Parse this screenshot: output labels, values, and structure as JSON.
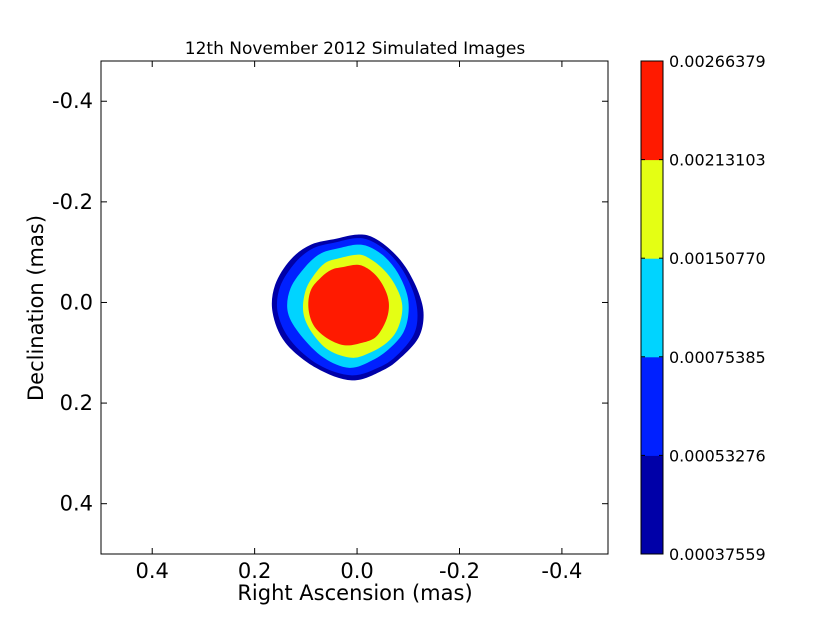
{
  "chart_data": {
    "type": "contour",
    "title": "12th November 2012 Simulated Images",
    "xlabel": "Right Ascension (mas)",
    "ylabel": "Declination (mas)",
    "xlim": [
      0.5,
      -0.49
    ],
    "ylim": [
      0.5,
      -0.48
    ],
    "x_ticks": [
      {
        "value": 0.4,
        "label": "0.4"
      },
      {
        "value": 0.2,
        "label": "0.2"
      },
      {
        "value": 0.0,
        "label": "0.0"
      },
      {
        "value": -0.2,
        "label": "-0.2"
      },
      {
        "value": -0.4,
        "label": "-0.4"
      }
    ],
    "y_ticks": [
      {
        "value": -0.4,
        "label": "-0.4"
      },
      {
        "value": -0.2,
        "label": "-0.2"
      },
      {
        "value": 0.0,
        "label": "0.0"
      },
      {
        "value": 0.2,
        "label": "0.2"
      },
      {
        "value": 0.4,
        "label": "0.4"
      }
    ],
    "grid": false,
    "colorbar": {
      "position": "right",
      "levels": [
        {
          "value": 0.00037559,
          "label": "0.00037559"
        },
        {
          "value": 0.00053276,
          "label": "0.00053276"
        },
        {
          "value": 0.00075385,
          "label": "0.00075385"
        },
        {
          "value": 0.0015077,
          "label": "0.00150770"
        },
        {
          "value": 0.00213103,
          "label": "0.00213103"
        },
        {
          "value": 0.00266379,
          "label": "0.00266379"
        }
      ],
      "colors": [
        "#0000a8",
        "#0020ff",
        "#00d4ff",
        "#e4ff14",
        "#ff1a00"
      ]
    },
    "contours": [
      {
        "level": 0.00037559,
        "color": "#0000a8",
        "points": [
          [
            0.04,
            -0.127
          ],
          [
            0.0,
            -0.135
          ],
          [
            -0.03,
            -0.13
          ],
          [
            -0.065,
            -0.105
          ],
          [
            -0.095,
            -0.07
          ],
          [
            -0.12,
            -0.02
          ],
          [
            -0.13,
            0.025
          ],
          [
            -0.12,
            0.07
          ],
          [
            -0.085,
            0.11
          ],
          [
            -0.05,
            0.135
          ],
          [
            0.01,
            0.155
          ],
          [
            0.08,
            0.13
          ],
          [
            0.14,
            0.08
          ],
          [
            0.165,
            0.02
          ],
          [
            0.16,
            -0.035
          ],
          [
            0.13,
            -0.085
          ],
          [
            0.09,
            -0.115
          ]
        ]
      },
      {
        "level": 0.00053276,
        "color": "#0020ff",
        "points": [
          [
            0.04,
            -0.12
          ],
          [
            0.0,
            -0.128
          ],
          [
            -0.028,
            -0.122
          ],
          [
            -0.06,
            -0.1
          ],
          [
            -0.088,
            -0.066
          ],
          [
            -0.11,
            -0.02
          ],
          [
            -0.118,
            0.025
          ],
          [
            -0.11,
            0.065
          ],
          [
            -0.078,
            0.105
          ],
          [
            -0.045,
            0.128
          ],
          [
            0.01,
            0.145
          ],
          [
            0.075,
            0.124
          ],
          [
            0.13,
            0.075
          ],
          [
            0.155,
            0.02
          ],
          [
            0.15,
            -0.032
          ],
          [
            0.12,
            -0.08
          ],
          [
            0.085,
            -0.108
          ]
        ]
      },
      {
        "level": 0.00075385,
        "color": "#00d4ff",
        "points": [
          [
            0.035,
            -0.108
          ],
          [
            0.0,
            -0.115
          ],
          [
            -0.025,
            -0.11
          ],
          [
            -0.055,
            -0.09
          ],
          [
            -0.08,
            -0.058
          ],
          [
            -0.098,
            -0.015
          ],
          [
            -0.1,
            0.025
          ],
          [
            -0.09,
            0.06
          ],
          [
            -0.065,
            0.09
          ],
          [
            -0.03,
            0.115
          ],
          [
            0.015,
            0.13
          ],
          [
            0.065,
            0.11
          ],
          [
            0.11,
            0.065
          ],
          [
            0.135,
            0.02
          ],
          [
            0.13,
            -0.028
          ],
          [
            0.1,
            -0.072
          ],
          [
            0.07,
            -0.098
          ]
        ]
      },
      {
        "level": 0.0015077,
        "color": "#e4ff14",
        "points": [
          [
            0.035,
            -0.088
          ],
          [
            0.0,
            -0.095
          ],
          [
            -0.02,
            -0.09
          ],
          [
            -0.045,
            -0.072
          ],
          [
            -0.068,
            -0.045
          ],
          [
            -0.085,
            -0.01
          ],
          [
            -0.088,
            0.02
          ],
          [
            -0.078,
            0.055
          ],
          [
            -0.058,
            0.08
          ],
          [
            -0.025,
            0.1
          ],
          [
            0.01,
            0.11
          ],
          [
            0.055,
            0.095
          ],
          [
            0.088,
            0.06
          ],
          [
            0.105,
            0.02
          ],
          [
            0.1,
            -0.025
          ],
          [
            0.08,
            -0.06
          ],
          [
            0.06,
            -0.08
          ]
        ]
      },
      {
        "level": 0.00213103,
        "color": "#ff1a00",
        "points": [
          [
            0.03,
            -0.07
          ],
          [
            0.0,
            -0.075
          ],
          [
            -0.02,
            -0.068
          ],
          [
            -0.04,
            -0.05
          ],
          [
            -0.055,
            -0.025
          ],
          [
            -0.062,
            0.0
          ],
          [
            -0.06,
            0.025
          ],
          [
            -0.05,
            0.05
          ],
          [
            -0.035,
            0.07
          ],
          [
            -0.01,
            0.08
          ],
          [
            0.025,
            0.085
          ],
          [
            0.06,
            0.07
          ],
          [
            0.085,
            0.045
          ],
          [
            0.095,
            0.01
          ],
          [
            0.09,
            -0.025
          ],
          [
            0.07,
            -0.05
          ],
          [
            0.05,
            -0.065
          ]
        ]
      }
    ]
  }
}
